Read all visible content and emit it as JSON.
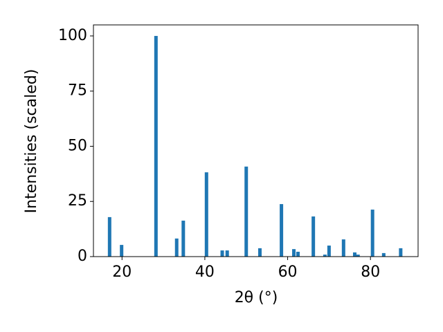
{
  "chart_data": {
    "type": "bar",
    "color": "#1f77b4",
    "x_label": "2θ (°)",
    "y_label": "Intensities (scaled)",
    "x": [
      17.0,
      19.9,
      28.2,
      33.2,
      34.8,
      40.4,
      44.2,
      45.4,
      50.0,
      53.3,
      58.5,
      61.5,
      62.5,
      66.2,
      69.0,
      70.0,
      73.5,
      76.2,
      77.0,
      80.5,
      83.2,
      87.3
    ],
    "values": [
      17.9,
      5.3,
      100,
      8.2,
      16.3,
      38.2,
      2.8,
      2.8,
      40.8,
      3.8,
      23.8,
      3.4,
      2.2,
      18.2,
      0.9,
      5.0,
      7.8,
      1.9,
      0.9,
      21.3,
      1.6,
      3.8
    ],
    "xlim": [
      13.1,
      91.5
    ],
    "xticks": [
      20,
      40,
      60,
      80
    ],
    "ylim": [
      0,
      105
    ],
    "yticks": [
      0,
      25,
      50,
      75,
      100
    ]
  }
}
